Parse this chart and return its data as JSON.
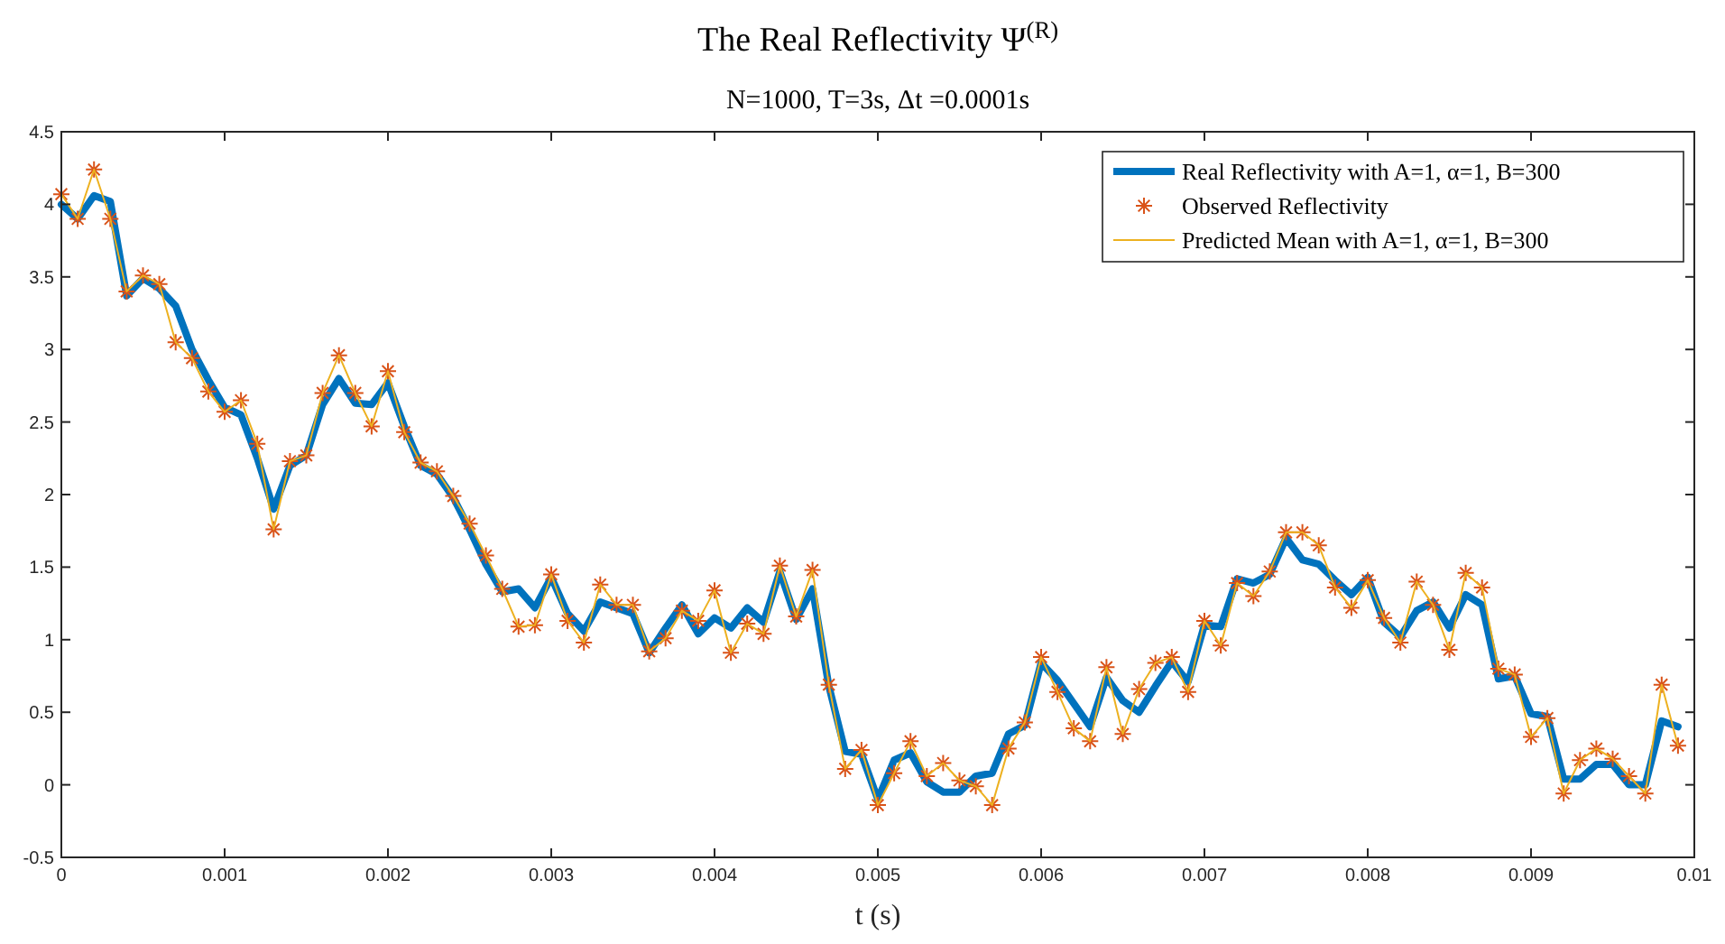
{
  "chart_data": {
    "type": "line",
    "title": "The Real Reflectivity Ψ$^{(R)}$",
    "subtitle": "N=1000, T=3s, Δt =0.0001s",
    "xlabel": "t (s)",
    "x": [
      0,
      0.0001,
      0.0002,
      0.0003,
      0.0004,
      0.0005,
      0.0006,
      0.0007,
      0.0008,
      0.0009,
      0.001,
      0.0011,
      0.0012,
      0.0013,
      0.0014,
      0.0015,
      0.0016,
      0.0017,
      0.0018,
      0.0019,
      0.002,
      0.0021,
      0.0022,
      0.0023,
      0.0024,
      0.0025,
      0.0026,
      0.0027,
      0.0028,
      0.0029,
      0.003,
      0.0031,
      0.0032,
      0.0033,
      0.0034,
      0.0035,
      0.0036,
      0.0037,
      0.0038,
      0.0039,
      0.004,
      0.0041,
      0.0042,
      0.0043,
      0.0044,
      0.0045,
      0.0046,
      0.0047,
      0.0048,
      0.0049,
      0.005,
      0.0051,
      0.0052,
      0.0053,
      0.0054,
      0.0055,
      0.0056,
      0.0057,
      0.0058,
      0.0059,
      0.006,
      0.0061,
      0.0062,
      0.0063,
      0.0064,
      0.0065,
      0.0066,
      0.0067,
      0.0068,
      0.0069,
      0.007,
      0.0071,
      0.0072,
      0.0073,
      0.0074,
      0.0075,
      0.0076,
      0.0077,
      0.0078,
      0.0079,
      0.008,
      0.0081,
      0.0082,
      0.0083,
      0.0084,
      0.0085,
      0.0086,
      0.0087,
      0.0088,
      0.0089,
      0.009,
      0.0091,
      0.0092,
      0.0093,
      0.0094,
      0.0095,
      0.0096,
      0.0097,
      0.0098,
      0.0099
    ],
    "series": [
      {
        "name": "Real Reflectivity with A=1, α=1, B=300",
        "color": "#0072bd",
        "values": [
          4.0,
          3.9,
          4.06,
          4.02,
          3.37,
          3.49,
          3.42,
          3.3,
          3.0,
          2.79,
          2.6,
          2.55,
          2.25,
          1.9,
          2.2,
          2.27,
          2.62,
          2.8,
          2.63,
          2.62,
          2.77,
          2.47,
          2.2,
          2.14,
          1.98,
          1.76,
          1.52,
          1.33,
          1.35,
          1.22,
          1.43,
          1.18,
          1.06,
          1.26,
          1.22,
          1.18,
          0.91,
          1.08,
          1.24,
          1.04,
          1.15,
          1.08,
          1.22,
          1.12,
          1.47,
          1.14,
          1.35,
          0.68,
          0.23,
          0.21,
          -0.1,
          0.17,
          0.22,
          0.02,
          -0.05,
          -0.05,
          0.06,
          0.08,
          0.35,
          0.41,
          0.84,
          0.72,
          0.56,
          0.4,
          0.74,
          0.58,
          0.5,
          0.68,
          0.85,
          0.71,
          1.1,
          1.09,
          1.42,
          1.39,
          1.45,
          1.7,
          1.55,
          1.52,
          1.41,
          1.31,
          1.43,
          1.12,
          1.02,
          1.2,
          1.26,
          1.08,
          1.31,
          1.24,
          0.73,
          0.75,
          0.49,
          0.47,
          0.04,
          0.04,
          0.14,
          0.14,
          0.0,
          0.0,
          0.44,
          0.4
        ]
      },
      {
        "name": "Observed Reflectivity",
        "type": "scatter",
        "marker": "cross",
        "color": "#d95319",
        "values": [
          4.07,
          3.9,
          4.24,
          3.9,
          3.4,
          3.51,
          3.45,
          3.05,
          2.94,
          2.71,
          2.57,
          2.65,
          2.35,
          1.76,
          2.23,
          2.27,
          2.7,
          2.96,
          2.7,
          2.47,
          2.85,
          2.43,
          2.22,
          2.16,
          1.99,
          1.8,
          1.58,
          1.35,
          1.09,
          1.1,
          1.45,
          1.13,
          0.98,
          1.38,
          1.24,
          1.24,
          0.92,
          1.01,
          1.2,
          1.13,
          1.34,
          0.91,
          1.11,
          1.04,
          1.51,
          1.16,
          1.48,
          0.69,
          0.11,
          0.24,
          -0.14,
          0.08,
          0.3,
          0.06,
          0.15,
          0.03,
          -0.01,
          -0.14,
          0.25,
          0.43,
          0.88,
          0.64,
          0.39,
          0.3,
          0.81,
          0.35,
          0.66,
          0.84,
          0.88,
          0.64,
          1.13,
          0.96,
          1.39,
          1.3,
          1.47,
          1.74,
          1.74,
          1.65,
          1.36,
          1.22,
          1.41,
          1.15,
          0.98,
          1.4,
          1.24,
          0.93,
          1.46,
          1.36,
          0.8,
          0.76,
          0.33,
          0.46,
          -0.06,
          0.17,
          0.25,
          0.18,
          0.06,
          -0.06,
          0.69,
          0.27
        ]
      },
      {
        "name": "Predicted Mean with A=1, α=1, B=300",
        "color": "#edb120",
        "values": [
          4.07,
          3.9,
          4.24,
          3.9,
          3.4,
          3.51,
          3.45,
          3.05,
          2.94,
          2.71,
          2.57,
          2.65,
          2.35,
          1.76,
          2.23,
          2.27,
          2.7,
          2.96,
          2.7,
          2.47,
          2.85,
          2.43,
          2.22,
          2.16,
          1.99,
          1.8,
          1.58,
          1.35,
          1.09,
          1.1,
          1.45,
          1.13,
          0.98,
          1.38,
          1.24,
          1.24,
          0.92,
          1.01,
          1.2,
          1.13,
          1.34,
          0.91,
          1.11,
          1.04,
          1.51,
          1.16,
          1.48,
          0.69,
          0.11,
          0.24,
          -0.14,
          0.08,
          0.3,
          0.06,
          0.15,
          0.03,
          -0.01,
          -0.14,
          0.25,
          0.43,
          0.88,
          0.64,
          0.39,
          0.3,
          0.81,
          0.35,
          0.66,
          0.84,
          0.88,
          0.64,
          1.13,
          0.96,
          1.39,
          1.3,
          1.47,
          1.74,
          1.74,
          1.65,
          1.36,
          1.22,
          1.41,
          1.15,
          0.98,
          1.4,
          1.24,
          0.93,
          1.46,
          1.36,
          0.8,
          0.76,
          0.33,
          0.46,
          -0.06,
          0.17,
          0.25,
          0.18,
          0.06,
          -0.06,
          0.69,
          0.27
        ]
      }
    ],
    "xlim": [
      0,
      0.01
    ],
    "xticks": [
      0,
      0.001,
      0.002,
      0.003,
      0.004,
      0.005,
      0.006,
      0.007,
      0.008,
      0.009,
      0.01
    ],
    "ylim": [
      -0.5,
      4.5
    ],
    "yticks": [
      -0.5,
      0,
      0.5,
      1,
      1.5,
      2,
      2.5,
      3,
      3.5,
      4,
      4.5
    ],
    "grid": false,
    "legend": "top right"
  }
}
